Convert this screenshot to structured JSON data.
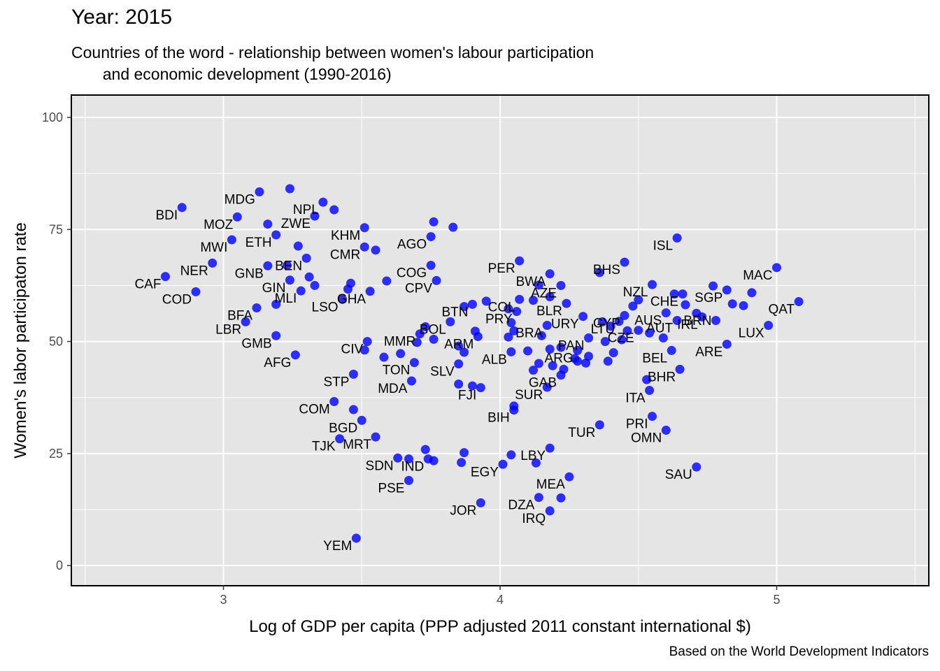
{
  "title": "Year: 2015",
  "subtitle": "Countries of the word - relationship between women's labour participation\n       and economic development (1990-2016)",
  "caption": "Based on the World Development Indicators",
  "colors": {
    "point": "#0000ff",
    "panel": "#e5e5e5",
    "grid": "#ffffff",
    "border": "#000000"
  },
  "chart_data": {
    "type": "scatter",
    "xlabel": "Log of GDP per capita (PPP adjusted 2011 constant international $)",
    "ylabel": "Women's labor participaton rate",
    "xlim": [
      2.45,
      5.55
    ],
    "ylim": [
      -4.5,
      105
    ],
    "xticks": [
      3,
      4,
      5
    ],
    "yticks": [
      0,
      25,
      50,
      75,
      100
    ],
    "grid": true,
    "points": [
      {
        "x": 2.85,
        "y": 79.9
      },
      {
        "x": 3.13,
        "y": 83.4
      },
      {
        "x": 3.24,
        "y": 84.1
      },
      {
        "x": 3.36,
        "y": 81.1
      },
      {
        "x": 3.4,
        "y": 79.4
      },
      {
        "x": 3.05,
        "y": 77.8
      },
      {
        "x": 3.33,
        "y": 78.0
      },
      {
        "x": 3.16,
        "y": 76.2
      },
      {
        "x": 3.76,
        "y": 76.7
      },
      {
        "x": 3.83,
        "y": 75.5
      },
      {
        "x": 3.51,
        "y": 75.4
      },
      {
        "x": 3.19,
        "y": 73.8
      },
      {
        "x": 3.03,
        "y": 72.7
      },
      {
        "x": 3.75,
        "y": 73.4
      },
      {
        "x": 3.27,
        "y": 71.3
      },
      {
        "x": 3.51,
        "y": 71.1
      },
      {
        "x": 3.55,
        "y": 70.4
      },
      {
        "x": 4.64,
        "y": 73.1
      },
      {
        "x": 3.3,
        "y": 68.6
      },
      {
        "x": 2.96,
        "y": 67.5
      },
      {
        "x": 3.23,
        "y": 67.0
      },
      {
        "x": 3.16,
        "y": 66.9
      },
      {
        "x": 3.75,
        "y": 67.0
      },
      {
        "x": 4.07,
        "y": 68.0
      },
      {
        "x": 4.45,
        "y": 67.7
      },
      {
        "x": 4.36,
        "y": 65.4
      },
      {
        "x": 4.18,
        "y": 65.1
      },
      {
        "x": 5.0,
        "y": 66.5
      },
      {
        "x": 2.79,
        "y": 64.5
      },
      {
        "x": 3.31,
        "y": 64.4
      },
      {
        "x": 3.24,
        "y": 63.7
      },
      {
        "x": 3.59,
        "y": 63.5
      },
      {
        "x": 3.77,
        "y": 63.6
      },
      {
        "x": 4.14,
        "y": 62.6
      },
      {
        "x": 4.22,
        "y": 62.5
      },
      {
        "x": 3.46,
        "y": 63.0
      },
      {
        "x": 3.33,
        "y": 62.5
      },
      {
        "x": 3.45,
        "y": 61.7
      },
      {
        "x": 3.53,
        "y": 61.2
      },
      {
        "x": 3.28,
        "y": 61.3
      },
      {
        "x": 4.55,
        "y": 62.7
      },
      {
        "x": 4.77,
        "y": 62.4
      },
      {
        "x": 4.82,
        "y": 61.5
      },
      {
        "x": 4.91,
        "y": 60.9
      },
      {
        "x": 4.63,
        "y": 60.6
      },
      {
        "x": 4.66,
        "y": 60.6
      },
      {
        "x": 4.18,
        "y": 60.0
      },
      {
        "x": 2.9,
        "y": 61.1
      },
      {
        "x": 3.43,
        "y": 59.4
      },
      {
        "x": 4.5,
        "y": 59.3
      },
      {
        "x": 4.07,
        "y": 59.4
      },
      {
        "x": 4.12,
        "y": 59.2
      },
      {
        "x": 4.24,
        "y": 58.5
      },
      {
        "x": 3.95,
        "y": 59.0
      },
      {
        "x": 3.9,
        "y": 58.3
      },
      {
        "x": 3.87,
        "y": 57.8
      },
      {
        "x": 4.48,
        "y": 57.9
      },
      {
        "x": 4.67,
        "y": 58.2
      },
      {
        "x": 4.84,
        "y": 58.4
      },
      {
        "x": 4.88,
        "y": 58.0
      },
      {
        "x": 5.08,
        "y": 58.9
      },
      {
        "x": 3.19,
        "y": 58.3
      },
      {
        "x": 3.12,
        "y": 57.5
      },
      {
        "x": 4.03,
        "y": 57.3
      },
      {
        "x": 4.06,
        "y": 56.7
      },
      {
        "x": 4.3,
        "y": 55.6
      },
      {
        "x": 4.6,
        "y": 56.4
      },
      {
        "x": 4.71,
        "y": 56.3
      },
      {
        "x": 4.73,
        "y": 55.5
      },
      {
        "x": 4.45,
        "y": 55.8
      },
      {
        "x": 4.43,
        "y": 54.5
      },
      {
        "x": 4.64,
        "y": 54.7
      },
      {
        "x": 4.78,
        "y": 54.7
      },
      {
        "x": 4.97,
        "y": 53.6
      },
      {
        "x": 3.08,
        "y": 54.4
      },
      {
        "x": 3.82,
        "y": 54.4
      },
      {
        "x": 4.04,
        "y": 54.2
      },
      {
        "x": 4.17,
        "y": 53.6
      },
      {
        "x": 4.37,
        "y": 54.4
      },
      {
        "x": 4.4,
        "y": 53.4
      },
      {
        "x": 3.73,
        "y": 53.3
      },
      {
        "x": 3.71,
        "y": 51.7
      },
      {
        "x": 3.91,
        "y": 52.3
      },
      {
        "x": 3.92,
        "y": 51.1
      },
      {
        "x": 4.03,
        "y": 51.0
      },
      {
        "x": 4.05,
        "y": 52.4
      },
      {
        "x": 4.15,
        "y": 51.3
      },
      {
        "x": 4.22,
        "y": 48.7
      },
      {
        "x": 4.28,
        "y": 48.0
      },
      {
        "x": 4.32,
        "y": 50.8
      },
      {
        "x": 4.38,
        "y": 50.0
      },
      {
        "x": 4.46,
        "y": 52.4
      },
      {
        "x": 4.5,
        "y": 52.5
      },
      {
        "x": 4.54,
        "y": 51.9
      },
      {
        "x": 4.59,
        "y": 50.8
      },
      {
        "x": 4.44,
        "y": 50.4
      },
      {
        "x": 3.19,
        "y": 51.3
      },
      {
        "x": 3.52,
        "y": 50.0
      },
      {
        "x": 3.7,
        "y": 49.8
      },
      {
        "x": 3.76,
        "y": 50.5
      },
      {
        "x": 3.85,
        "y": 49.0
      },
      {
        "x": 3.51,
        "y": 48.1
      },
      {
        "x": 3.64,
        "y": 47.3
      },
      {
        "x": 3.58,
        "y": 46.5
      },
      {
        "x": 3.87,
        "y": 47.6
      },
      {
        "x": 4.04,
        "y": 47.7
      },
      {
        "x": 4.1,
        "y": 47.9
      },
      {
        "x": 4.18,
        "y": 48.3
      },
      {
        "x": 4.27,
        "y": 46.2
      },
      {
        "x": 4.32,
        "y": 46.7
      },
      {
        "x": 4.41,
        "y": 47.5
      },
      {
        "x": 4.62,
        "y": 48.0
      },
      {
        "x": 4.82,
        "y": 49.4
      },
      {
        "x": 3.26,
        "y": 47.0
      },
      {
        "x": 3.69,
        "y": 45.3
      },
      {
        "x": 3.85,
        "y": 45.0
      },
      {
        "x": 4.12,
        "y": 43.6
      },
      {
        "x": 4.14,
        "y": 45.1
      },
      {
        "x": 4.19,
        "y": 44.6
      },
      {
        "x": 4.23,
        "y": 43.8
      },
      {
        "x": 4.28,
        "y": 45.6
      },
      {
        "x": 4.31,
        "y": 45.2
      },
      {
        "x": 4.39,
        "y": 45.6
      },
      {
        "x": 4.22,
        "y": 42.5
      },
      {
        "x": 4.65,
        "y": 43.8
      },
      {
        "x": 3.47,
        "y": 42.7
      },
      {
        "x": 3.68,
        "y": 41.2
      },
      {
        "x": 3.85,
        "y": 40.5
      },
      {
        "x": 3.9,
        "y": 40.1
      },
      {
        "x": 3.93,
        "y": 39.7
      },
      {
        "x": 4.17,
        "y": 39.8
      },
      {
        "x": 4.53,
        "y": 41.5
      },
      {
        "x": 4.54,
        "y": 39.1
      },
      {
        "x": 3.4,
        "y": 36.6
      },
      {
        "x": 3.47,
        "y": 34.8
      },
      {
        "x": 4.05,
        "y": 35.6
      },
      {
        "x": 4.05,
        "y": 34.7
      },
      {
        "x": 3.5,
        "y": 32.4
      },
      {
        "x": 4.36,
        "y": 31.4
      },
      {
        "x": 4.55,
        "y": 33.3
      },
      {
        "x": 4.6,
        "y": 30.2
      },
      {
        "x": 3.42,
        "y": 28.3
      },
      {
        "x": 3.55,
        "y": 28.7
      },
      {
        "x": 3.73,
        "y": 25.9
      },
      {
        "x": 3.87,
        "y": 25.2
      },
      {
        "x": 4.04,
        "y": 24.7
      },
      {
        "x": 4.18,
        "y": 26.2
      },
      {
        "x": 3.63,
        "y": 24.0
      },
      {
        "x": 3.67,
        "y": 23.8
      },
      {
        "x": 3.74,
        "y": 23.8
      },
      {
        "x": 3.76,
        "y": 23.4
      },
      {
        "x": 3.86,
        "y": 23.0
      },
      {
        "x": 4.01,
        "y": 22.6
      },
      {
        "x": 4.13,
        "y": 22.9
      },
      {
        "x": 4.71,
        "y": 22.0
      },
      {
        "x": 3.67,
        "y": 19.0
      },
      {
        "x": 4.25,
        "y": 19.8
      },
      {
        "x": 4.14,
        "y": 15.2
      },
      {
        "x": 4.22,
        "y": 15.1
      },
      {
        "x": 3.93,
        "y": 14.0
      },
      {
        "x": 4.18,
        "y": 12.2
      },
      {
        "x": 3.48,
        "y": 6.1
      }
    ],
    "labels": [
      {
        "text": "BDI",
        "x": 2.85,
        "y": 79.9
      },
      {
        "text": "MDG",
        "x": 3.13,
        "y": 83.4
      },
      {
        "text": "NPL",
        "x": 3.36,
        "y": 81.1
      },
      {
        "text": "MOZ",
        "x": 3.05,
        "y": 77.8
      },
      {
        "text": "ZWE",
        "x": 3.33,
        "y": 78.0
      },
      {
        "text": "KHM",
        "x": 3.51,
        "y": 75.4
      },
      {
        "text": "AGO",
        "x": 3.75,
        "y": 73.4
      },
      {
        "text": "ETH",
        "x": 3.19,
        "y": 73.8
      },
      {
        "text": "MWI",
        "x": 3.03,
        "y": 72.7
      },
      {
        "text": "CMR",
        "x": 3.51,
        "y": 71.1
      },
      {
        "text": "ISL",
        "x": 4.64,
        "y": 73.1
      },
      {
        "text": "NER",
        "x": 2.96,
        "y": 67.5
      },
      {
        "text": "BEN",
        "x": 3.3,
        "y": 68.6
      },
      {
        "text": "GNB",
        "x": 3.16,
        "y": 66.9
      },
      {
        "text": "PER",
        "x": 4.07,
        "y": 68.0
      },
      {
        "text": "BHS",
        "x": 4.45,
        "y": 67.7
      },
      {
        "text": "MAC",
        "x": 5.0,
        "y": 66.5
      },
      {
        "text": "COG",
        "x": 3.75,
        "y": 67.0
      },
      {
        "text": "BWA",
        "x": 4.18,
        "y": 65.1
      },
      {
        "text": "CAF",
        "x": 2.79,
        "y": 64.5
      },
      {
        "text": "GIN",
        "x": 3.24,
        "y": 63.7
      },
      {
        "text": "CPV",
        "x": 3.77,
        "y": 63.6
      },
      {
        "text": "AZE",
        "x": 4.22,
        "y": 62.5
      },
      {
        "text": "NZL",
        "x": 4.55,
        "y": 62.7
      },
      {
        "text": "GHA",
        "x": 3.53,
        "y": 61.2
      },
      {
        "text": "MLI",
        "x": 3.28,
        "y": 61.3
      },
      {
        "text": "CHE",
        "x": 4.66,
        "y": 60.6
      },
      {
        "text": "SGP",
        "x": 4.82,
        "y": 61.5
      },
      {
        "text": "COD",
        "x": 2.9,
        "y": 61.1
      },
      {
        "text": "LSO",
        "x": 3.43,
        "y": 59.4
      },
      {
        "text": "COL",
        "x": 4.07,
        "y": 59.4
      },
      {
        "text": "BLR",
        "x": 4.24,
        "y": 58.5
      },
      {
        "text": "AUS",
        "x": 4.6,
        "y": 56.4
      },
      {
        "text": "BRN",
        "x": 4.78,
        "y": 56.3
      },
      {
        "text": "QAT",
        "x": 5.08,
        "y": 58.9
      },
      {
        "text": "BFA",
        "x": 3.12,
        "y": 57.5
      },
      {
        "text": "BTN",
        "x": 3.9,
        "y": 58.3
      },
      {
        "text": "CYP",
        "x": 4.45,
        "y": 55.8
      },
      {
        "text": "PRY",
        "x": 4.06,
        "y": 56.7
      },
      {
        "text": "URY",
        "x": 4.3,
        "y": 55.6
      },
      {
        "text": "IRL",
        "x": 4.73,
        "y": 55.5
      },
      {
        "text": "LTU",
        "x": 4.43,
        "y": 54.5
      },
      {
        "text": "LBR",
        "x": 3.08,
        "y": 54.4
      },
      {
        "text": "AUT",
        "x": 4.64,
        "y": 54.7
      },
      {
        "text": "LUX",
        "x": 4.97,
        "y": 53.6
      },
      {
        "text": "BOL",
        "x": 3.82,
        "y": 54.4
      },
      {
        "text": "BRA",
        "x": 4.17,
        "y": 53.6
      },
      {
        "text": "GMB",
        "x": 3.19,
        "y": 51.3
      },
      {
        "text": "MMR",
        "x": 3.71,
        "y": 51.7
      },
      {
        "text": "ARM",
        "x": 3.92,
        "y": 51.1
      },
      {
        "text": "PAN",
        "x": 4.32,
        "y": 50.8
      },
      {
        "text": "CZE",
        "x": 4.5,
        "y": 52.5
      },
      {
        "text": "ARE",
        "x": 4.82,
        "y": 49.4
      },
      {
        "text": "AFG",
        "x": 3.26,
        "y": 47.0
      },
      {
        "text": "CIV",
        "x": 3.52,
        "y": 50.0
      },
      {
        "text": "ALB",
        "x": 4.04,
        "y": 47.7
      },
      {
        "text": "ARG",
        "x": 4.28,
        "y": 48.0
      },
      {
        "text": "BEL",
        "x": 4.62,
        "y": 48.0
      },
      {
        "text": "TON",
        "x": 3.69,
        "y": 45.3
      },
      {
        "text": "SLV",
        "x": 3.85,
        "y": 45.0
      },
      {
        "text": "BHR",
        "x": 4.65,
        "y": 43.8
      },
      {
        "text": "STP",
        "x": 3.47,
        "y": 42.7
      },
      {
        "text": "GAB",
        "x": 4.22,
        "y": 42.5
      },
      {
        "text": "MDA",
        "x": 3.68,
        "y": 41.2
      },
      {
        "text": "FJI",
        "x": 3.93,
        "y": 39.7
      },
      {
        "text": "SUR",
        "x": 4.17,
        "y": 39.8
      },
      {
        "text": "ITA",
        "x": 4.54,
        "y": 39.1
      },
      {
        "text": "COM",
        "x": 3.4,
        "y": 36.6
      },
      {
        "text": "BIH",
        "x": 4.05,
        "y": 34.7
      },
      {
        "text": "BGD",
        "x": 3.5,
        "y": 32.4
      },
      {
        "text": "PRI",
        "x": 4.55,
        "y": 33.3
      },
      {
        "text": "TUR",
        "x": 4.36,
        "y": 31.4
      },
      {
        "text": "OMN",
        "x": 4.6,
        "y": 30.2
      },
      {
        "text": "TJK",
        "x": 3.42,
        "y": 28.3
      },
      {
        "text": "MRT",
        "x": 3.55,
        "y": 28.7
      },
      {
        "text": "LBY",
        "x": 4.18,
        "y": 26.2
      },
      {
        "text": "SDN",
        "x": 3.63,
        "y": 24.0
      },
      {
        "text": "IND",
        "x": 3.74,
        "y": 23.8
      },
      {
        "text": "EGY",
        "x": 4.01,
        "y": 22.6
      },
      {
        "text": "SAU",
        "x": 4.71,
        "y": 22.0
      },
      {
        "text": "MEA",
        "x": 4.25,
        "y": 19.8
      },
      {
        "text": "PSE",
        "x": 3.67,
        "y": 19.0
      },
      {
        "text": "DZA",
        "x": 4.14,
        "y": 15.2
      },
      {
        "text": "JOR",
        "x": 3.93,
        "y": 14.0
      },
      {
        "text": "IRQ",
        "x": 4.18,
        "y": 12.2
      },
      {
        "text": "YEM",
        "x": 3.48,
        "y": 6.1
      }
    ]
  }
}
